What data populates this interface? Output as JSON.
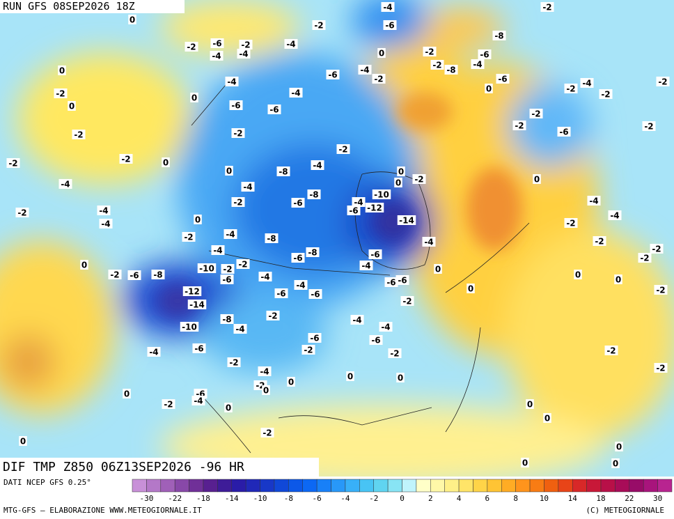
{
  "header": {
    "run": "RUN GFS 08SEP2026 18Z"
  },
  "map": {
    "title": "DIF TMP Z850 06Z13SEP2026 -96 HR",
    "contour_labels": [
      0,
      -4,
      -2,
      -2,
      -6,
      -8,
      -6,
      -2,
      -2,
      -4,
      -4,
      -4,
      0,
      -2,
      -6,
      -2,
      -8,
      -4,
      0,
      -4,
      -6,
      -2,
      -6,
      -2,
      -4,
      0,
      -4,
      -2,
      -2,
      0,
      -4,
      -2,
      0,
      -6,
      -6,
      -2,
      -2,
      -2,
      -2,
      -2,
      -6,
      -2,
      -2,
      0,
      -2,
      -4,
      0,
      -8,
      0,
      -2,
      0,
      -4,
      -4,
      0,
      -8,
      -10,
      -2,
      -6,
      -4,
      -12,
      -6,
      -4,
      -4,
      -2,
      -4,
      -4,
      0,
      -14,
      -2,
      -4,
      -2,
      -8,
      -4,
      -2,
      -2,
      -2,
      -4,
      -6,
      -8,
      -6,
      -4,
      0,
      -2,
      -10,
      -2,
      0,
      -2,
      -6,
      -8,
      -4,
      -6,
      0,
      0,
      -6,
      -6,
      -4,
      -12,
      -6,
      -6,
      -2,
      0,
      -14,
      -2,
      -2,
      -4,
      -8,
      -4,
      -10,
      -4,
      -6,
      -6,
      -6,
      -4,
      -2,
      -2,
      -2,
      -2,
      -4,
      -2,
      0,
      0,
      0,
      -2,
      0,
      -6,
      -4,
      0,
      -2,
      0,
      0,
      0,
      -2,
      0,
      0,
      0,
      0
    ]
  },
  "colorbar": {
    "source": "DATI NCEP GFS 0.25°",
    "colors": [
      "#c890d8",
      "#b478c8",
      "#a060b8",
      "#8848a8",
      "#703098",
      "#582090",
      "#3e1c98",
      "#2a1ca8",
      "#2028b8",
      "#1838c8",
      "#1048d8",
      "#0c58e8",
      "#0c68f4",
      "#1880f8",
      "#2898f8",
      "#38b0f8",
      "#48c4f4",
      "#60d4f0",
      "#88e4f4",
      "#c0f4fc",
      "#ffffc8",
      "#fff8a8",
      "#fff088",
      "#ffe468",
      "#ffd448",
      "#ffc434",
      "#ffac24",
      "#ff941c",
      "#f87c14",
      "#f06010",
      "#e84418",
      "#d82828",
      "#c81838",
      "#b81048",
      "#a80c58",
      "#980c68",
      "#a8147c",
      "#b82490"
    ],
    "ticks": [
      -30,
      -22,
      -18,
      -14,
      -10,
      -8,
      -6,
      -4,
      -2,
      0,
      2,
      4,
      6,
      8,
      10,
      14,
      18,
      22,
      30
    ]
  },
  "footer": {
    "credit": "MTG-GFS — ELABORAZIONE WWW.METEOGIORNALE.IT",
    "copyright": "(C) METEOGIORNALE"
  }
}
